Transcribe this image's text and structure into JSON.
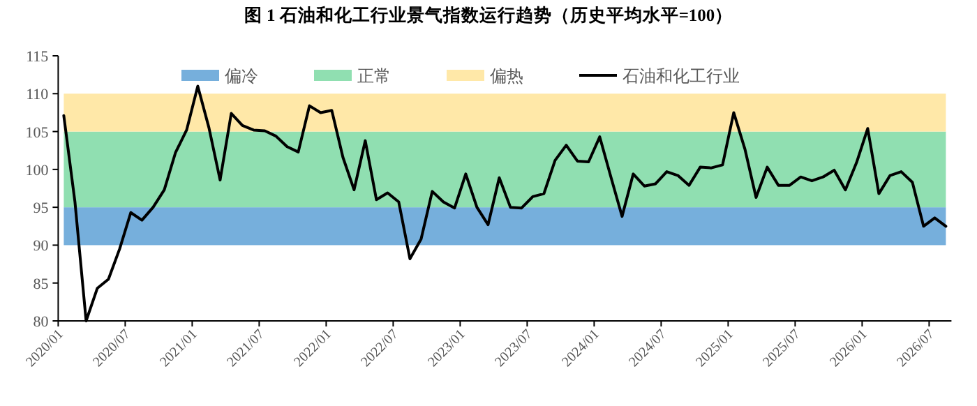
{
  "chart_data": {
    "type": "line",
    "title": "图 1  石油和化工行业景气指数运行趋势（历史平均水平=100）",
    "categories": [
      "2020/01",
      null,
      null,
      null,
      null,
      null,
      "2020/07",
      null,
      null,
      null,
      null,
      null,
      "2021/01",
      null,
      null,
      null,
      null,
      null,
      "2021/07",
      null,
      null,
      null,
      null,
      null,
      "2022/01",
      null,
      null,
      null,
      null,
      null,
      "2022/07",
      null,
      null,
      null,
      null,
      null,
      "2023/01",
      null,
      null,
      null,
      null,
      null,
      "2023/07",
      null,
      null,
      null,
      null,
      null,
      "2024/01",
      null,
      null,
      null,
      null,
      null,
      "2024/07",
      null,
      null,
      null,
      null,
      null,
      "2025/01",
      null,
      null,
      null,
      null,
      null,
      "2025/07",
      null,
      null,
      null,
      null,
      null,
      "2026/01",
      null,
      null,
      null,
      null,
      null,
      "2026/07",
      null
    ],
    "series": [
      {
        "name": "石油和化工行业",
        "color": "#000000",
        "values": [
          107.1,
          95.7,
          80,
          84.3,
          85.5,
          89.5,
          94.3,
          93.3,
          95.0,
          97.3,
          102.2,
          105.2,
          111.0,
          105.5,
          98.6,
          107.4,
          105.8,
          105.2,
          105.1,
          104.4,
          103.0,
          102.3,
          108.4,
          107.5,
          107.8,
          101.6,
          97.3,
          103.8,
          96.0,
          96.9,
          95.7,
          88.2,
          90.8,
          97.1,
          95.7,
          94.9,
          99.4,
          95.0,
          92.7,
          98.9,
          95.0,
          94.9,
          96.4,
          96.8,
          101.2,
          103.2,
          101.1,
          101.0,
          104.3,
          99.0,
          93.8,
          99.4,
          97.8,
          98.1,
          99.7,
          99.2,
          97.9,
          100.3,
          100.2,
          100.6,
          107.5,
          102.7,
          96.3,
          100.3,
          97.9,
          97.9,
          99.0,
          98.5,
          99.0,
          99.9,
          97.3,
          100.9,
          105.4,
          96.8,
          99.2,
          99.7,
          98.3,
          92.5,
          93.6,
          92.5
        ]
      }
    ],
    "bands": [
      {
        "axis": "y",
        "from": 90,
        "to": 95,
        "label": "偏冷",
        "color": "#76afdc"
      },
      {
        "axis": "y",
        "from": 95,
        "to": 105,
        "label": "正常",
        "color": "#90dfb1"
      },
      {
        "axis": "y",
        "from": 105,
        "to": 110,
        "label": "偏热",
        "color": "#ffe8a8"
      }
    ],
    "ylim": [
      80,
      115
    ],
    "yticks": [
      80,
      85,
      90,
      95,
      100,
      105,
      110,
      115
    ],
    "legend": "top",
    "marker": "none",
    "line_style": "solid"
  }
}
